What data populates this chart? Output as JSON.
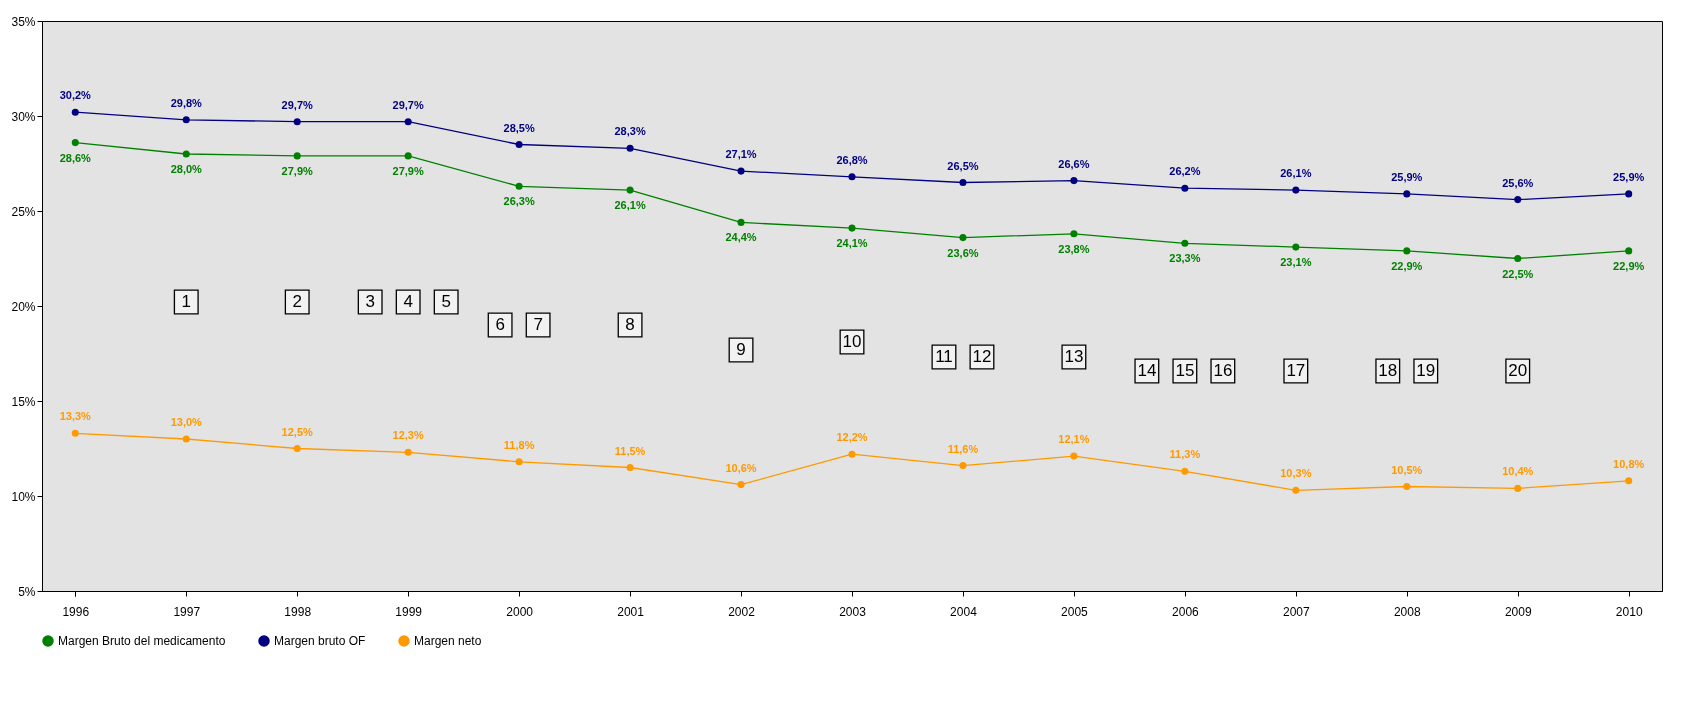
{
  "chart_data": {
    "type": "line",
    "categories": [
      "1996",
      "1997",
      "1998",
      "1999",
      "2000",
      "2001",
      "2002",
      "2003",
      "2004",
      "2005",
      "2006",
      "2007",
      "2008",
      "2009",
      "2010"
    ],
    "ylim": [
      5,
      35
    ],
    "yticks": [
      {
        "value": 5,
        "label": "5%"
      },
      {
        "value": 10,
        "label": "10%"
      },
      {
        "value": 15,
        "label": "15%"
      },
      {
        "value": 20,
        "label": "20%"
      },
      {
        "value": 25,
        "label": "25%"
      },
      {
        "value": 30,
        "label": "30%"
      },
      {
        "value": 35,
        "label": "35%"
      }
    ],
    "grid": false,
    "legend": "bottom",
    "marker": "circle",
    "line_style": "solid",
    "series": [
      {
        "name": "Margen Bruto del medicamento",
        "color": "#008000",
        "values": [
          28.6,
          28.0,
          27.9,
          27.9,
          26.3,
          26.1,
          24.4,
          24.1,
          23.6,
          23.8,
          23.3,
          23.1,
          22.9,
          22.5,
          22.9
        ],
        "value_labels": [
          "28,6%",
          "28,0%",
          "27,9%",
          "27,9%",
          "26,3%",
          "26,1%",
          "24,4%",
          "24,1%",
          "23,6%",
          "23,8%",
          "23,3%",
          "23,1%",
          "22,9%",
          "22,5%",
          "22,9%"
        ]
      },
      {
        "name": "Margen bruto OF",
        "color": "#000080",
        "values": [
          30.2,
          29.8,
          29.7,
          29.7,
          28.5,
          28.3,
          27.1,
          26.8,
          26.5,
          26.6,
          26.2,
          26.1,
          25.9,
          25.6,
          25.9
        ],
        "value_labels": [
          "30,2%",
          "29,8%",
          "29,7%",
          "29,7%",
          "28,5%",
          "28,3%",
          "27,1%",
          "26,8%",
          "26,5%",
          "26,6%",
          "26,2%",
          "26,1%",
          "25,9%",
          "25,6%",
          "25,9%"
        ]
      },
      {
        "name": "Margen neto",
        "color": "#ff9900",
        "values": [
          13.3,
          13.0,
          12.5,
          12.3,
          11.8,
          11.5,
          10.6,
          12.2,
          11.6,
          12.1,
          11.3,
          10.3,
          10.5,
          10.4,
          10.8
        ],
        "value_labels": [
          "13,3%",
          "13,0%",
          "12,5%",
          "12,3%",
          "11,8%",
          "11,5%",
          "10,6%",
          "12,2%",
          "11,6%",
          "12,1%",
          "11,3%",
          "10,3%",
          "10,5%",
          "10,4%",
          "10,8%"
        ]
      }
    ],
    "annotations": [
      "1",
      "2",
      "3",
      "4",
      "5",
      "6",
      "7",
      "8",
      "9",
      "10",
      "11",
      "12",
      "13",
      "14",
      "15",
      "16",
      "17",
      "18",
      "19",
      "20"
    ]
  }
}
